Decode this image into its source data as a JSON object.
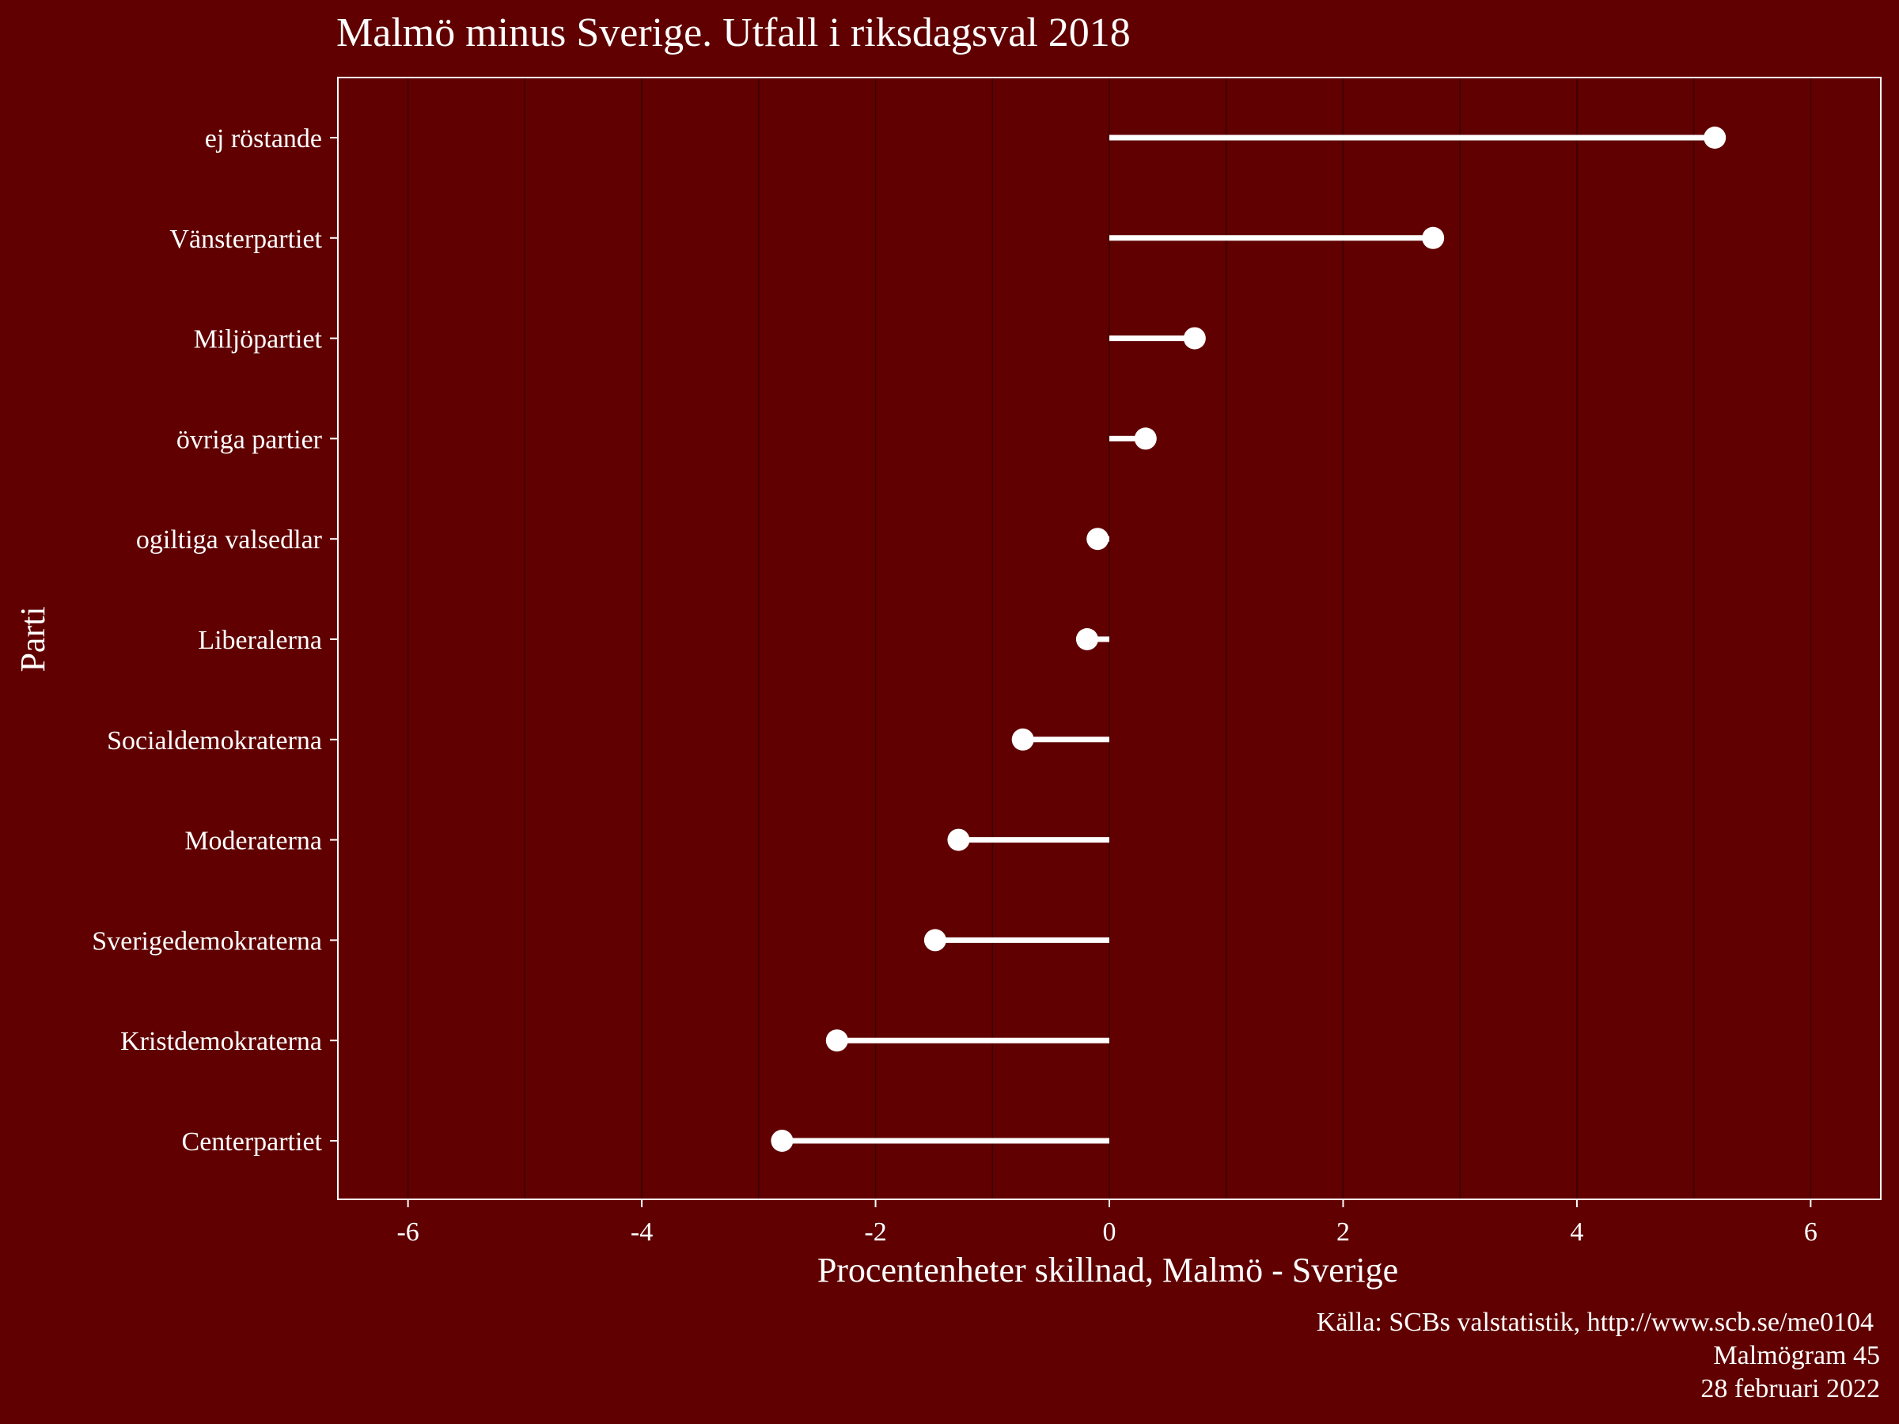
{
  "chart_data": {
    "type": "lollipop",
    "title": "Malmö minus Sverige. Utfall i riksdagsval 2018",
    "xlabel": "Procentenheter skillnad, Malmö - Sverige",
    "ylabel": "Parti",
    "xlim": [
      -6.6,
      6.6
    ],
    "x_ticks": [
      -6,
      -4,
      -2,
      0,
      2,
      4,
      6
    ],
    "grid": "vertical",
    "categories": [
      "ej röstande",
      "Vänsterpartiet",
      "Miljöpartiet",
      "övriga partier",
      "ogiltiga valsedlar",
      "Liberalerna",
      "Socialdemokraterna",
      "Moderaterna",
      "Sverigedemokraterna",
      "Kristdemokraterna",
      "Centerpartiet"
    ],
    "values": [
      5.18,
      2.77,
      0.73,
      0.31,
      -0.1,
      -0.19,
      -0.74,
      -1.29,
      -1.49,
      -2.33,
      -2.8
    ],
    "caption": [
      "Källa: SCBs valstatistik, http://www.scb.se/me0104",
      "Malmögram 45",
      "28 februari 2022"
    ],
    "colors": {
      "background": "#600000",
      "foreground": "#ffffff",
      "grid": "#3a0000"
    }
  }
}
